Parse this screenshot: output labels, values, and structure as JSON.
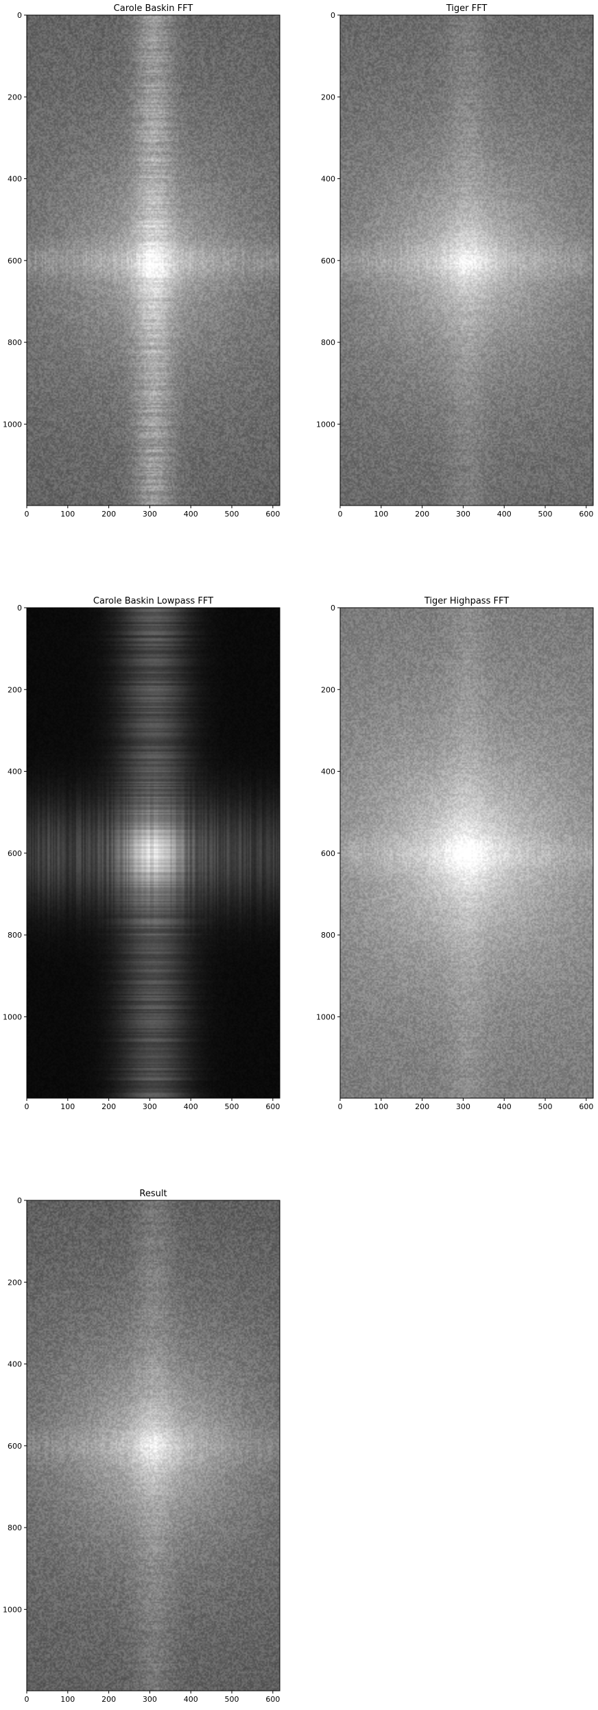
{
  "chart_data": [
    {
      "type": "heatmap",
      "title": "Carole Baskin FFT",
      "colormap": "gray",
      "style": "fft",
      "xlim": [
        0,
        617
      ],
      "ylim": [
        1199,
        0
      ],
      "xticks": [
        0,
        100,
        200,
        300,
        400,
        500,
        600
      ],
      "yticks": [
        0,
        200,
        400,
        600,
        800,
        1000
      ],
      "center": [
        308,
        600
      ],
      "background_level": 0.36,
      "vertical_band": 0.24,
      "horizontal_band": 0.12,
      "center_glow": 0.3
    },
    {
      "type": "heatmap",
      "title": "Tiger FFT",
      "colormap": "gray",
      "style": "fft",
      "xlim": [
        0,
        617
      ],
      "ylim": [
        1199,
        0
      ],
      "xticks": [
        0,
        100,
        200,
        300,
        400,
        500,
        600
      ],
      "yticks": [
        0,
        200,
        400,
        600,
        800,
        1000
      ],
      "center": [
        308,
        600
      ],
      "background_level": 0.38,
      "vertical_band": 0.08,
      "horizontal_band": 0.1,
      "center_glow": 0.4
    },
    {
      "type": "heatmap",
      "title": "Carole Baskin Lowpass FFT",
      "colormap": "gray",
      "style": "lowpass",
      "xlim": [
        0,
        617
      ],
      "ylim": [
        1199,
        0
      ],
      "xticks": [
        0,
        100,
        200,
        300,
        400,
        500,
        600
      ],
      "yticks": [
        0,
        200,
        400,
        600,
        800,
        1000
      ],
      "center": [
        308,
        600
      ],
      "background_level": 0.04,
      "vertical_band": 0.32,
      "horizontal_band": 0.26,
      "center_glow": 0.35
    },
    {
      "type": "heatmap",
      "title": "Tiger Highpass FFT",
      "colormap": "gray",
      "style": "fft",
      "xlim": [
        0,
        617
      ],
      "ylim": [
        1199,
        0
      ],
      "xticks": [
        0,
        100,
        200,
        300,
        400,
        500,
        600
      ],
      "yticks": [
        0,
        200,
        400,
        600,
        800,
        1000
      ],
      "center": [
        308,
        600
      ],
      "background_level": 0.45,
      "vertical_band": 0.07,
      "horizontal_band": 0.08,
      "center_glow": 0.45
    },
    {
      "type": "heatmap",
      "title": "Result",
      "colormap": "gray",
      "style": "fft",
      "xlim": [
        0,
        617
      ],
      "ylim": [
        1199,
        0
      ],
      "xticks": [
        0,
        100,
        200,
        300,
        400,
        500,
        600
      ],
      "yticks": [
        0,
        200,
        400,
        600,
        800,
        1000
      ],
      "center": [
        308,
        600
      ],
      "background_level": 0.34,
      "vertical_band": 0.1,
      "horizontal_band": 0.08,
      "center_glow": 0.4
    }
  ]
}
